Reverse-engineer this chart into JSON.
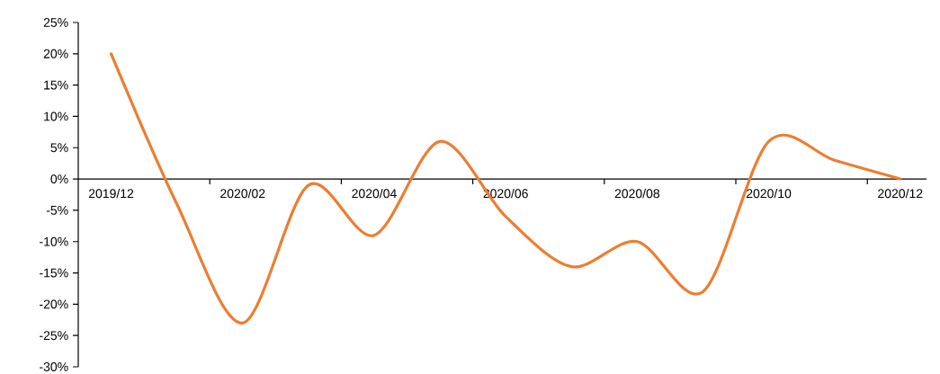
{
  "chart_data": {
    "type": "line",
    "categories": [
      "2019/12",
      null,
      "2020/02",
      null,
      "2020/04",
      null,
      "2020/06",
      null,
      "2020/08",
      null,
      "2020/10",
      null,
      "2020/12"
    ],
    "series": [
      {
        "color": "#ed7d31",
        "values": [
          20,
          -4,
          -23,
          -1,
          -9,
          6,
          -6,
          -14,
          -10,
          -18,
          6,
          3,
          0
        ]
      }
    ],
    "ylim": [
      -30,
      25
    ],
    "yticks": [
      {
        "value": -30,
        "label": "-30%"
      },
      {
        "value": -25,
        "label": "-25%"
      },
      {
        "value": -20,
        "label": "-20%"
      },
      {
        "value": -15,
        "label": "-15%"
      },
      {
        "value": -10,
        "label": "-10%"
      },
      {
        "value": -5,
        "label": "-5%"
      },
      {
        "value": 0,
        "label": "0%"
      },
      {
        "value": 5,
        "label": "5%"
      },
      {
        "value": 10,
        "label": "10%"
      },
      {
        "value": 15,
        "label": "15%"
      },
      {
        "value": 20,
        "label": "20%"
      },
      {
        "value": 25,
        "label": "25%"
      }
    ],
    "line_style": "solid",
    "marker": "none",
    "grid": false
  }
}
